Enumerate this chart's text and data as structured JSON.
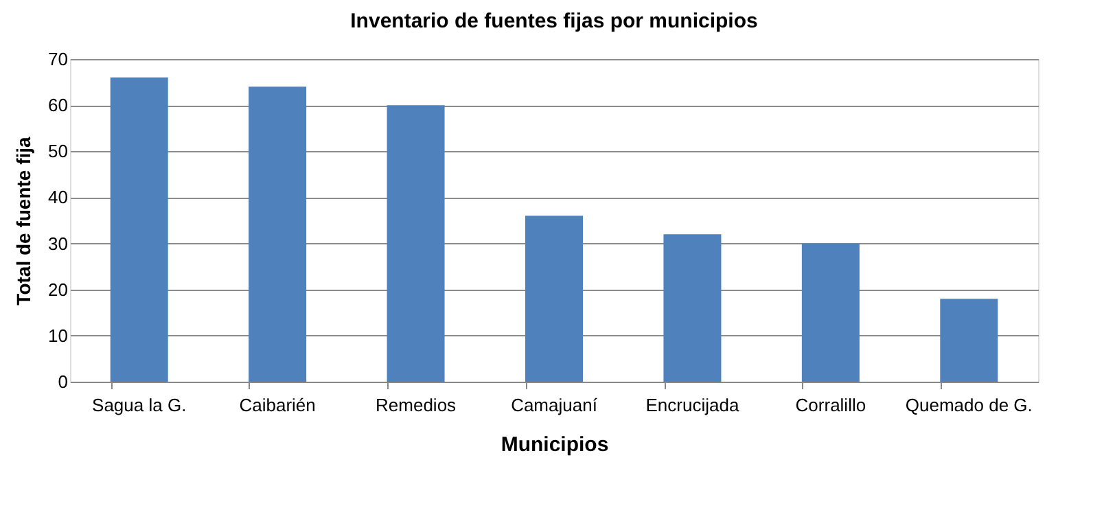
{
  "chart_data": {
    "type": "bar",
    "title": "Inventario de fuentes fijas por municipios",
    "xlabel": "Municipios",
    "ylabel": "Total de fuente fija",
    "categories": [
      "Sagua la G.",
      "Caibarién",
      "Remedios",
      "Camajuaní",
      "Encrucijada",
      "Corralillo",
      "Quemado de G."
    ],
    "values": [
      66,
      64,
      60,
      36,
      32,
      30,
      18
    ],
    "color": "#4f81bd",
    "ylim": [
      0,
      70
    ],
    "yticks": [
      0,
      10,
      20,
      30,
      40,
      50,
      60,
      70
    ],
    "grid": "y"
  }
}
